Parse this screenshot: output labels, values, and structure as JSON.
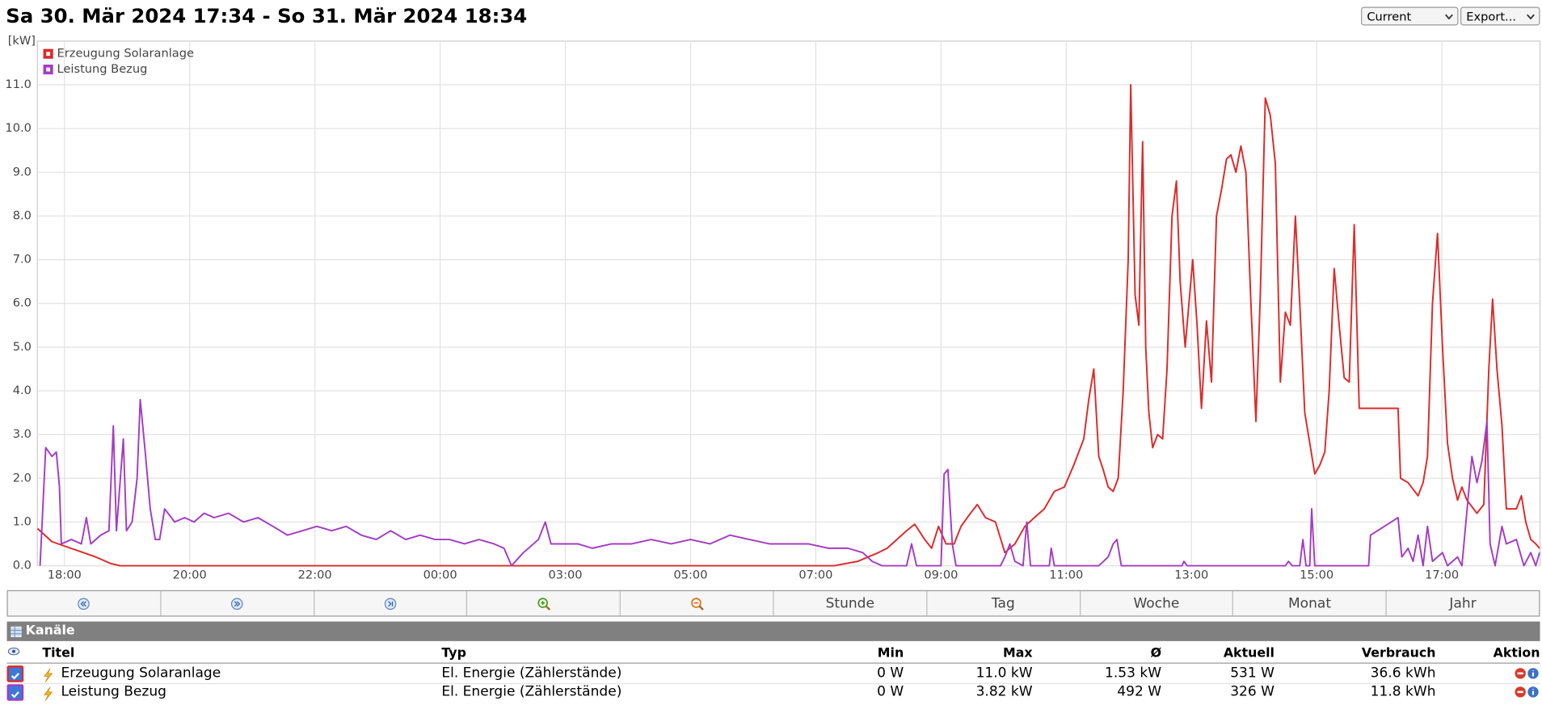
{
  "header": {
    "title": "Sa 30. Mär 2024 17:34 - So 31. Mär 2024 18:34",
    "selects": [
      "Current",
      "Export..."
    ]
  },
  "chart_data": {
    "type": "line",
    "y_label": "[kW]",
    "grid": true,
    "legend": "top-left",
    "xlim": [
      17.567,
      41.567
    ],
    "ylim": [
      0,
      12
    ],
    "xticks": [
      {
        "value": 18,
        "label": "18:00"
      },
      {
        "value": 20,
        "label": "20:00"
      },
      {
        "value": 22,
        "label": "22:00"
      },
      {
        "value": 24,
        "label": "00:00"
      },
      {
        "value": 26,
        "label": "03:00"
      },
      {
        "value": 28,
        "label": "05:00"
      },
      {
        "value": 30,
        "label": "07:00"
      },
      {
        "value": 32,
        "label": "09:00"
      },
      {
        "value": 34,
        "label": "11:00"
      },
      {
        "value": 36,
        "label": "13:00"
      },
      {
        "value": 38,
        "label": "15:00"
      },
      {
        "value": 40,
        "label": "17:00"
      }
    ],
    "yticks": [
      {
        "value": 0,
        "label": "0.0"
      },
      {
        "value": 1,
        "label": "1.0"
      },
      {
        "value": 2,
        "label": "2.0"
      },
      {
        "value": 3,
        "label": "3.0"
      },
      {
        "value": 4,
        "label": "4.0"
      },
      {
        "value": 5,
        "label": "5.0"
      },
      {
        "value": 6,
        "label": "6.0"
      },
      {
        "value": 7,
        "label": "7.0"
      },
      {
        "value": 8,
        "label": "8.0"
      },
      {
        "value": 9,
        "label": "9.0"
      },
      {
        "value": 10,
        "label": "10.0"
      },
      {
        "value": 11,
        "label": "11.0"
      }
    ],
    "series": [
      {
        "name": "Erzeugung Solaranlage",
        "color": "#dd2a2a",
        "x": [
          17.57,
          17.8,
          18.5,
          18.74,
          18.89,
          30.29,
          30.67,
          31.0,
          31.14,
          31.45,
          31.58,
          31.74,
          31.85,
          31.96,
          32.08,
          32.21,
          32.32,
          32.47,
          32.58,
          32.71,
          32.87,
          33.02,
          33.18,
          33.34,
          33.49,
          33.65,
          33.81,
          33.97,
          34.12,
          34.28,
          34.36,
          34.44,
          34.52,
          34.59,
          34.67,
          34.75,
          34.83,
          34.91,
          34.99,
          35.03,
          35.1,
          35.16,
          35.22,
          35.27,
          35.32,
          35.38,
          35.46,
          35.54,
          35.61,
          35.69,
          35.76,
          35.82,
          35.9,
          35.96,
          36.02,
          36.09,
          36.16,
          36.24,
          36.32,
          36.4,
          36.48,
          36.56,
          36.63,
          36.71,
          36.79,
          36.87,
          36.95,
          37.03,
          37.1,
          37.18,
          37.26,
          37.34,
          37.42,
          37.5,
          37.58,
          37.66,
          37.73,
          37.81,
          37.89,
          37.97,
          38.05,
          38.13,
          38.2,
          38.28,
          38.36,
          38.44,
          38.52,
          38.6,
          38.68,
          39.3,
          39.34,
          39.46,
          39.62,
          39.7,
          39.77,
          39.85,
          39.93,
          40.01,
          40.09,
          40.17,
          40.25,
          40.32,
          40.4,
          40.56,
          40.67,
          40.75,
          40.81,
          40.88,
          40.96,
          41.03,
          41.19,
          41.27,
          41.34,
          41.42,
          41.5,
          41.56
        ],
        "values": [
          0.85,
          0.55,
          0.2,
          0.05,
          0,
          0,
          0.1,
          0.3,
          0.4,
          0.8,
          0.95,
          0.6,
          0.4,
          0.9,
          0.5,
          0.5,
          0.9,
          1.2,
          1.4,
          1.1,
          1.0,
          0.3,
          0.5,
          0.9,
          1.1,
          1.3,
          1.7,
          1.8,
          2.3,
          2.9,
          3.8,
          4.5,
          2.5,
          2.2,
          1.8,
          1.7,
          2.0,
          4.0,
          7.0,
          11.0,
          6.2,
          5.5,
          9.7,
          5.0,
          3.5,
          2.7,
          3.0,
          2.9,
          4.5,
          8.0,
          8.8,
          6.5,
          5.0,
          6.0,
          7.0,
          5.5,
          3.6,
          5.6,
          4.2,
          8.0,
          8.6,
          9.3,
          9.4,
          9.0,
          9.6,
          9.0,
          6.0,
          3.3,
          6.2,
          10.7,
          10.3,
          9.2,
          4.2,
          5.8,
          5.5,
          8.0,
          6.0,
          3.5,
          2.8,
          2.1,
          2.3,
          2.6,
          4.0,
          6.8,
          5.5,
          4.3,
          4.2,
          7.8,
          3.6,
          3.6,
          2.0,
          1.9,
          1.6,
          1.9,
          2.5,
          6.0,
          7.6,
          5.0,
          2.8,
          2.0,
          1.5,
          1.8,
          1.5,
          1.2,
          1.4,
          4.5,
          6.1,
          4.5,
          3.2,
          1.3,
          1.3,
          1.6,
          1.0,
          0.6,
          0.5,
          0.4
        ]
      },
      {
        "name": "Leistung Bezug",
        "color": "#a43cc4",
        "x": [
          17.61,
          17.7,
          17.8,
          17.87,
          17.92,
          17.95,
          18.11,
          18.27,
          18.35,
          18.42,
          18.58,
          18.71,
          18.78,
          18.83,
          18.94,
          18.99,
          19.08,
          19.16,
          19.21,
          19.29,
          19.37,
          19.45,
          19.52,
          19.6,
          19.76,
          19.92,
          20.07,
          20.23,
          20.39,
          20.62,
          20.86,
          21.09,
          21.33,
          21.56,
          21.8,
          22.03,
          22.27,
          22.5,
          22.74,
          22.98,
          23.21,
          23.45,
          23.68,
          23.92,
          24.15,
          24.39,
          24.62,
          24.86,
          25.02,
          25.14,
          25.33,
          25.57,
          25.68,
          25.77,
          25.96,
          26.2,
          26.43,
          26.74,
          27.06,
          27.37,
          27.69,
          28.0,
          28.31,
          28.63,
          28.94,
          29.26,
          29.57,
          29.88,
          30.2,
          30.51,
          30.75,
          30.9,
          31.06,
          31.45,
          31.53,
          31.61,
          32.0,
          32.05,
          32.11,
          32.18,
          32.24,
          32.95,
          33.02,
          33.1,
          33.18,
          33.31,
          33.37,
          33.43,
          33.73,
          33.76,
          33.81,
          34.52,
          34.67,
          34.75,
          34.81,
          34.88,
          35.85,
          35.88,
          35.93,
          37.5,
          37.55,
          37.61,
          37.73,
          37.78,
          37.83,
          37.89,
          37.92,
          37.97,
          38.83,
          38.86,
          39.3,
          39.36,
          39.46,
          39.54,
          39.62,
          39.7,
          39.77,
          39.85,
          40.01,
          40.09,
          40.25,
          40.32,
          40.48,
          40.56,
          40.64,
          40.72,
          40.77,
          40.85,
          40.96,
          41.03,
          41.19,
          41.31,
          41.42,
          41.5,
          41.56
        ],
        "values": [
          0,
          2.7,
          2.5,
          2.6,
          1.8,
          0.5,
          0.6,
          0.5,
          1.1,
          0.5,
          0.7,
          0.8,
          3.2,
          0.8,
          2.9,
          0.8,
          1.0,
          2.0,
          3.8,
          2.6,
          1.3,
          0.6,
          0.6,
          1.3,
          1.0,
          1.1,
          1.0,
          1.2,
          1.1,
          1.2,
          1.0,
          1.1,
          0.9,
          0.7,
          0.8,
          0.9,
          0.8,
          0.9,
          0.7,
          0.6,
          0.8,
          0.6,
          0.7,
          0.6,
          0.6,
          0.5,
          0.6,
          0.5,
          0.4,
          0,
          0.3,
          0.6,
          1.0,
          0.5,
          0.5,
          0.5,
          0.4,
          0.5,
          0.5,
          0.6,
          0.5,
          0.6,
          0.5,
          0.7,
          0.6,
          0.5,
          0.5,
          0.5,
          0.4,
          0.4,
          0.3,
          0.1,
          0,
          0,
          0.5,
          0,
          0,
          2.1,
          2.2,
          0.5,
          0,
          0,
          0.2,
          0.5,
          0.1,
          0,
          1.0,
          0,
          0,
          0.4,
          0,
          0,
          0.2,
          0.5,
          0.6,
          0,
          0,
          0.1,
          0,
          0,
          0.1,
          0,
          0,
          0.6,
          0,
          0,
          1.3,
          0,
          0,
          0.7,
          1.1,
          0.2,
          0.4,
          0.1,
          0.7,
          0,
          0.9,
          0.1,
          0.3,
          0,
          0.2,
          0,
          2.5,
          1.9,
          2.4,
          3.3,
          0.5,
          0,
          0.9,
          0.5,
          0.6,
          0,
          0.3,
          0,
          0.3
        ]
      }
    ]
  },
  "navigation": {
    "buttons": [
      "Stunde",
      "Tag",
      "Woche",
      "Monat",
      "Jahr"
    ]
  },
  "channels": {
    "title": "Kanäle",
    "columns": [
      "Titel",
      "Typ",
      "Min",
      "Max",
      "Ø",
      "Aktuell",
      "Verbrauch",
      "Aktion"
    ],
    "rows": [
      [
        "Erzeugung Solaranlage",
        "El. Energie (Zählerstände)",
        "0 W",
        "11.0 kW",
        "1.53 kW",
        "531 W",
        "36.6 kWh"
      ],
      [
        "Leistung Bezug",
        "El. Energie (Zählerstände)",
        "0 W",
        "3.82 kW",
        "492 W",
        "326 W",
        "11.8 kWh"
      ]
    ]
  }
}
